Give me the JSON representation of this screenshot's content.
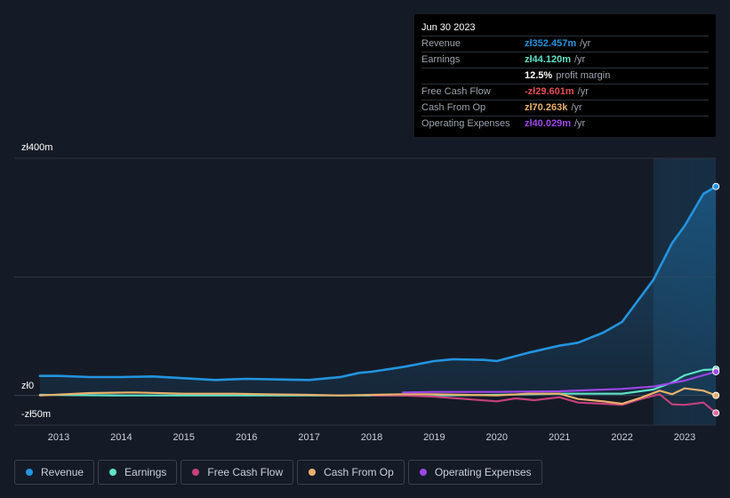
{
  "chart_data": {
    "type": "line",
    "x_ticks": [
      "2013",
      "2014",
      "2015",
      "2016",
      "2017",
      "2018",
      "2019",
      "2020",
      "2021",
      "2022",
      "2023"
    ],
    "y_ticks": [
      "zł400m",
      "zł0",
      "-zł50m"
    ],
    "ylim": [
      -50,
      400
    ],
    "series": [
      {
        "name": "Revenue",
        "color": "#2394df",
        "area": true,
        "x": [
          2012.7,
          2013.0,
          2013.5,
          2014.0,
          2014.5,
          2015.0,
          2015.5,
          2016.0,
          2016.5,
          2017.0,
          2017.5,
          2017.8,
          2018.0,
          2018.5,
          2019.0,
          2019.3,
          2019.8,
          2020.0,
          2020.5,
          2021.0,
          2021.3,
          2021.7,
          2022.0,
          2022.5,
          2022.8,
          2023.0,
          2023.3,
          2023.5
        ],
        "y": [
          33,
          33,
          31,
          31,
          32,
          29,
          26,
          28,
          27,
          26,
          31,
          38,
          40,
          48,
          58,
          61,
          60,
          58,
          72,
          84,
          89,
          106,
          124,
          195,
          257,
          286,
          340,
          352.457
        ]
      },
      {
        "name": "Earnings",
        "color": "#5fe2c8",
        "x": [
          2012.7,
          2014.0,
          2015.0,
          2016.0,
          2017.0,
          2018.0,
          2019.0,
          2020.0,
          2021.0,
          2022.0,
          2022.5,
          2022.8,
          2023.0,
          2023.3,
          2023.5
        ],
        "y": [
          1,
          0,
          0,
          0,
          0,
          0,
          0,
          1,
          3,
          3,
          10,
          22,
          34,
          43,
          44.12
        ]
      },
      {
        "name": "Free Cash Flow",
        "color": "#c4417c",
        "x": [
          2018.0,
          2018.5,
          2019.0,
          2019.5,
          2020.0,
          2020.3,
          2020.6,
          2021.0,
          2021.3,
          2021.7,
          2022.0,
          2022.3,
          2022.6,
          2022.8,
          2023.0,
          2023.3,
          2023.5
        ],
        "y": [
          0,
          0,
          -2,
          -6,
          -10,
          -5,
          -8,
          -3,
          -12,
          -14,
          -16,
          -6,
          2,
          -15,
          -16,
          -12,
          -29.601
        ]
      },
      {
        "name": "Cash From Op",
        "color": "#e9b06c",
        "x": [
          2012.7,
          2013.5,
          2014.2,
          2015.0,
          2015.8,
          2016.3,
          2017.0,
          2017.5,
          2018.0,
          2018.5,
          2019.0,
          2019.5,
          2020.0,
          2020.5,
          2021.0,
          2021.3,
          2021.7,
          2022.0,
          2022.3,
          2022.6,
          2022.8,
          2023.0,
          2023.3,
          2023.5
        ],
        "y": [
          0,
          4,
          5,
          3,
          3,
          2,
          1,
          0,
          1,
          2,
          2,
          1,
          0,
          3,
          3,
          -6,
          -10,
          -14,
          -4,
          8,
          2,
          12,
          8,
          0.07
        ]
      },
      {
        "name": "Operating Expenses",
        "color": "#9d46e8",
        "x": [
          2018.5,
          2019.0,
          2020.0,
          2021.0,
          2022.0,
          2022.5,
          2023.0,
          2023.5
        ],
        "y": [
          5,
          6,
          6,
          7,
          11,
          15,
          25,
          40.029
        ]
      }
    ],
    "highlight_x": 2023.5,
    "highlight_start": 2022.5,
    "legend": [
      "Revenue",
      "Earnings",
      "Free Cash Flow",
      "Cash From Op",
      "Operating Expenses"
    ],
    "grid": true
  },
  "tooltip": {
    "date": "Jun 30 2023",
    "rows": [
      {
        "label": "Revenue",
        "value": "zł352.457m",
        "unit": "/yr",
        "color": "#2394df"
      },
      {
        "label": "Earnings",
        "value": "zł44.120m",
        "unit": "/yr",
        "color": "#5fe2c8"
      },
      {
        "label": "",
        "value": "12.5%",
        "unit": "profit margin",
        "color": "#ffffff"
      },
      {
        "label": "Free Cash Flow",
        "value": "-zł29.601m",
        "unit": "/yr",
        "color": "#e54d53"
      },
      {
        "label": "Cash From Op",
        "value": "zł70.263k",
        "unit": "/yr",
        "color": "#e9b06c"
      },
      {
        "label": "Operating Expenses",
        "value": "zł40.029m",
        "unit": "/yr",
        "color": "#9d46e8"
      }
    ]
  },
  "legend": [
    {
      "label": "Revenue",
      "color": "#2394df"
    },
    {
      "label": "Earnings",
      "color": "#5fe2c8"
    },
    {
      "label": "Free Cash Flow",
      "color": "#c4417c"
    },
    {
      "label": "Cash From Op",
      "color": "#e9b06c"
    },
    {
      "label": "Operating Expenses",
      "color": "#9d46e8"
    }
  ]
}
